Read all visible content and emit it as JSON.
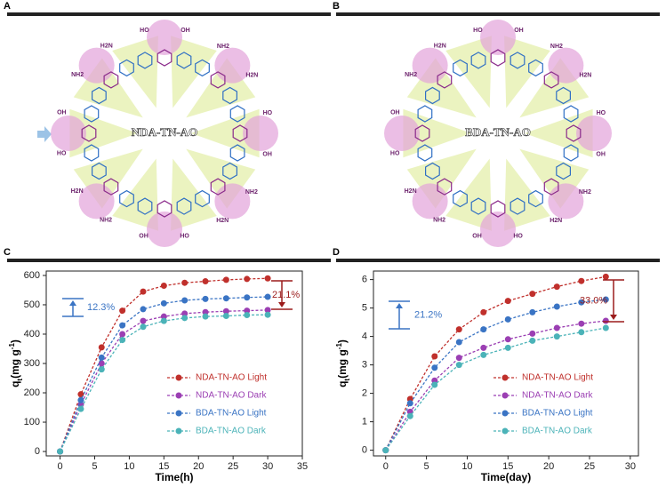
{
  "panel_labels": [
    "A",
    "B",
    "C",
    "D"
  ],
  "structures": [
    {
      "label": "NDA-TN-AO",
      "groups": [
        "OH",
        "NH2",
        "H2N",
        "HO"
      ]
    },
    {
      "label": "BDA-TN-AO",
      "groups": [
        "OH",
        "NH2",
        "H2N",
        "HO"
      ]
    }
  ],
  "chart_data": [
    {
      "type": "line",
      "xlabel": "Time(h)",
      "ylabel": [
        "q",
        "t",
        "(mg g",
        "-1",
        ")"
      ],
      "x": [
        0,
        3,
        6,
        9,
        12,
        15,
        18,
        21,
        24,
        27,
        30
      ],
      "xlim": [
        -2,
        35
      ],
      "xticks": [
        0,
        5,
        10,
        15,
        20,
        25,
        30,
        35
      ],
      "ylim": [
        -15,
        615
      ],
      "yticks": [
        0,
        100,
        200,
        300,
        400,
        500,
        600
      ],
      "series": [
        {
          "name": "NDA-TN-AO Light",
          "color": "#c0302c",
          "values": [
            0,
            195,
            355,
            480,
            545,
            565,
            575,
            580,
            585,
            588,
            590
          ]
        },
        {
          "name": "NDA-TN-AO Dark",
          "color": "#9b3fb3",
          "values": [
            0,
            160,
            300,
            400,
            445,
            460,
            470,
            475,
            478,
            480,
            482
          ]
        },
        {
          "name": "BDA-TN-AO Light",
          "color": "#3a74c4",
          "values": [
            0,
            175,
            320,
            430,
            485,
            505,
            515,
            520,
            522,
            525,
            527
          ]
        },
        {
          "name": "BDA-TN-AO Dark",
          "color": "#4bb3b8",
          "values": [
            0,
            145,
            280,
            380,
            425,
            445,
            455,
            460,
            462,
            465,
            466
          ]
        }
      ],
      "annotations": [
        {
          "text": "12.3%",
          "color": "#3a74c4"
        },
        {
          "text": "21.1%",
          "color": "#9b1c1c"
        }
      ]
    },
    {
      "type": "line",
      "xlabel": "Time(day)",
      "ylabel": [
        "q",
        "t",
        "(mg g",
        "-1",
        ")"
      ],
      "x": [
        0,
        3,
        6,
        9,
        12,
        15,
        18,
        21,
        24,
        27
      ],
      "xlim": [
        -1.5,
        31
      ],
      "xticks": [
        0,
        5,
        10,
        15,
        20,
        25,
        30
      ],
      "ylim": [
        -0.2,
        6.3
      ],
      "yticks": [
        0,
        1,
        2,
        3,
        4,
        5,
        6
      ],
      "series": [
        {
          "name": "NDA-TN-AO Light",
          "color": "#c0302c",
          "values": [
            0,
            1.8,
            3.3,
            4.25,
            4.85,
            5.25,
            5.5,
            5.75,
            5.95,
            6.1
          ]
        },
        {
          "name": "NDA-TN-AO Dark",
          "color": "#9b3fb3",
          "values": [
            0,
            1.35,
            2.45,
            3.25,
            3.6,
            3.9,
            4.1,
            4.3,
            4.45,
            4.55
          ]
        },
        {
          "name": "BDA-TN-AO Light",
          "color": "#3a74c4",
          "values": [
            0,
            1.65,
            2.9,
            3.8,
            4.25,
            4.6,
            4.85,
            5.05,
            5.2,
            5.3
          ]
        },
        {
          "name": "BDA-TN-AO Dark",
          "color": "#4bb3b8",
          "values": [
            0,
            1.2,
            2.3,
            3.0,
            3.35,
            3.6,
            3.85,
            4.0,
            4.15,
            4.3
          ]
        }
      ],
      "annotations": [
        {
          "text": "21.2%",
          "color": "#3a74c4"
        },
        {
          "text": "33.0%",
          "color": "#9b1c1c"
        }
      ]
    }
  ]
}
